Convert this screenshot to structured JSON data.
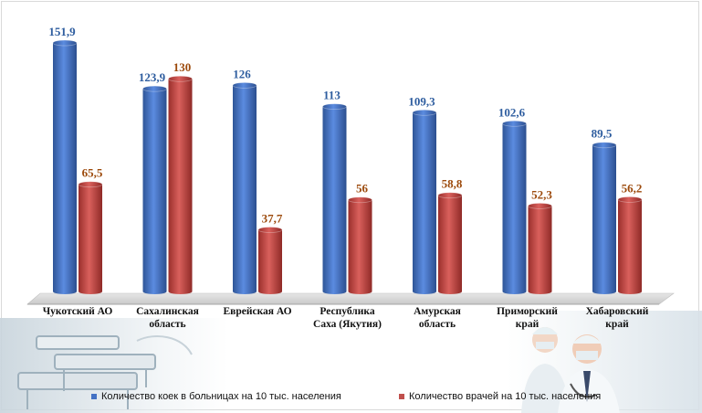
{
  "chart_data": {
    "type": "bar",
    "categories": [
      [
        "Чукотский АО"
      ],
      [
        "Сахалинская",
        "область"
      ],
      [
        "Еврейская АО"
      ],
      [
        "Республика",
        "Саха (Якутия)"
      ],
      [
        "Амурская",
        "область"
      ],
      [
        "Приморский",
        "край"
      ],
      [
        "Хабаровский",
        "край"
      ]
    ],
    "series": [
      {
        "name": "Количество коек в больницах на 10 тыс. населения",
        "color": "#4472c4",
        "label_color": "#2e5d9f",
        "values": [
          151.9,
          123.9,
          126,
          113,
          109.3,
          102.6,
          89.5
        ],
        "labels": [
          "151,9",
          "123,9",
          "126",
          "113",
          "109,3",
          "102,6",
          "89,5"
        ]
      },
      {
        "name": "Количество врачей на 10 тыс. населения",
        "color": "#c0504d",
        "label_color": "#9c4a0c",
        "values": [
          65.5,
          130,
          37.7,
          56,
          58.8,
          52.3,
          56.2
        ],
        "labels": [
          "65,5",
          "130",
          "37,7",
          "56",
          "58,8",
          "52,3",
          "56,2"
        ]
      }
    ],
    "ylim": [
      0,
      160
    ],
    "grid": false,
    "legend_position": "bottom"
  },
  "images": {
    "left_photo": "hospital-beds-photo",
    "right_photo": "doctors-photo"
  }
}
